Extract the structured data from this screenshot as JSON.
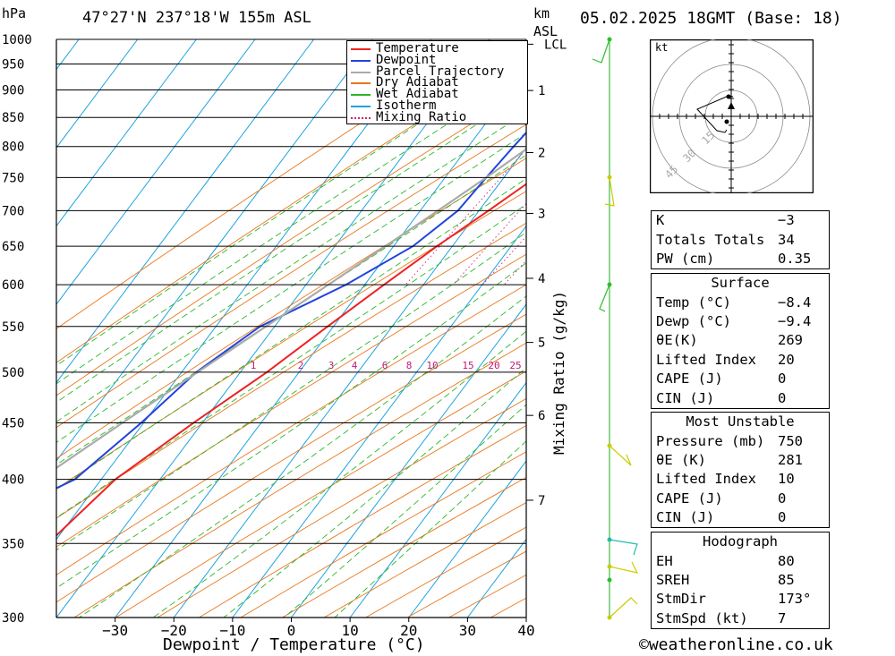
{
  "header": {
    "unit": "hPa",
    "location": "47°27'N 237°18'W 155m ASL",
    "km_label": "km",
    "asl_label": "ASL",
    "datetime": "05.02.2025 18GMT (Base: 18)"
  },
  "chart_data": {
    "type": "skew-t",
    "xlabel": "Dewpoint / Temperature (°C)",
    "ylabel": "hPa",
    "right_axis_label": "Mixing Ratio (g/kg)",
    "xlim": [
      -40,
      40
    ],
    "ylim": [
      1000,
      300
    ],
    "x_ticks": [
      -30,
      -20,
      -10,
      0,
      10,
      20,
      30,
      40
    ],
    "x_tick_labels": [
      "−30",
      "−20",
      "−10",
      "0",
      "10",
      "20",
      "30",
      "40"
    ],
    "pressure_levels": [
      300,
      350,
      400,
      450,
      500,
      550,
      600,
      650,
      700,
      750,
      800,
      850,
      900,
      950,
      1000
    ],
    "km_ticks": [
      {
        "label": "7",
        "p": 383
      },
      {
        "label": "6",
        "p": 457
      },
      {
        "label": "5",
        "p": 532
      },
      {
        "label": "4",
        "p": 608
      },
      {
        "label": "3",
        "p": 696
      },
      {
        "label": "2",
        "p": 790
      },
      {
        "label": "1",
        "p": 899
      },
      {
        "label": "LCL",
        "p": 990
      }
    ],
    "mixing_ratio_labels": [
      "1",
      "2",
      "3",
      "4",
      "6",
      "8",
      "10",
      "15",
      "20",
      "25"
    ],
    "legend": [
      "Temperature",
      "Dewpoint",
      "Parcel Trajectory",
      "Dry Adiabat",
      "Wet Adiabat",
      "Isotherm",
      "Mixing Ratio"
    ],
    "legend_position": "top-right",
    "series": [
      {
        "name": "Temperature",
        "color": "#ee2222",
        "points": [
          [
            1000,
            -8.4
          ],
          [
            975,
            -7.0
          ],
          [
            950,
            -6.5
          ],
          [
            925,
            -6.6
          ],
          [
            900,
            -7.0
          ],
          [
            875,
            -7.8
          ],
          [
            850,
            -8.6
          ],
          [
            800,
            -11.4
          ],
          [
            750,
            -14.6
          ],
          [
            700,
            -18.4
          ],
          [
            650,
            -22.6
          ],
          [
            600,
            -26.7
          ],
          [
            550,
            -31.0
          ],
          [
            500,
            -35.5
          ],
          [
            450,
            -41.5
          ],
          [
            400,
            -47.6
          ],
          [
            350,
            -50.9
          ],
          [
            300,
            -54.0
          ]
        ]
      },
      {
        "name": "Dewpoint",
        "color": "#2244dd",
        "points": [
          [
            1000,
            -9.4
          ],
          [
            975,
            -10.0
          ],
          [
            950,
            -11.0
          ],
          [
            925,
            -15.0
          ],
          [
            900,
            -19.5
          ],
          [
            850,
            -21.5
          ],
          [
            800,
            -22.3
          ],
          [
            750,
            -23.0
          ],
          [
            700,
            -23.6
          ],
          [
            650,
            -26.7
          ],
          [
            600,
            -33.2
          ],
          [
            550,
            -42.5
          ],
          [
            500,
            -47.5
          ],
          [
            450,
            -50.4
          ],
          [
            400,
            -54.5
          ],
          [
            350,
            -69.0
          ],
          [
            300,
            -73.0
          ]
        ]
      },
      {
        "name": "Parcel Trajectory",
        "color": "#aaaaaa",
        "points": [
          [
            1000,
            -9.4
          ],
          [
            950,
            -11.2
          ],
          [
            900,
            -13.6
          ],
          [
            850,
            -16.4
          ],
          [
            800,
            -19.5
          ],
          [
            750,
            -23.0
          ],
          [
            700,
            -27.0
          ],
          [
            650,
            -31.4
          ],
          [
            600,
            -36.2
          ],
          [
            550,
            -41.5
          ],
          [
            500,
            -47.3
          ],
          [
            450,
            -53.6
          ],
          [
            400,
            -60.5
          ],
          [
            350,
            -68.0
          ],
          [
            300,
            -76.0
          ]
        ]
      }
    ]
  },
  "hodograph": {
    "unit_label": "kt",
    "ring_labels": [
      "15",
      "30",
      "45"
    ]
  },
  "indices": {
    "general": [
      {
        "label": "K",
        "value": "−3"
      },
      {
        "label": "Totals Totals",
        "value": "34"
      },
      {
        "label": "PW (cm)",
        "value": "0.35"
      }
    ],
    "surface": {
      "title": "Surface",
      "rows": [
        {
          "label": "Temp (°C)",
          "value": "−8.4"
        },
        {
          "label": "Dewp (°C)",
          "value": "−9.4"
        },
        {
          "label": "θE(K)",
          "value": "269"
        },
        {
          "label": "Lifted Index",
          "value": "20"
        },
        {
          "label": "CAPE (J)",
          "value": "0"
        },
        {
          "label": "CIN (J)",
          "value": "0"
        }
      ]
    },
    "most_unstable": {
      "title": "Most Unstable",
      "rows": [
        {
          "label": "Pressure (mb)",
          "value": "750"
        },
        {
          "label": "θE (K)",
          "value": "281"
        },
        {
          "label": "Lifted Index",
          "value": "10"
        },
        {
          "label": "CAPE (J)",
          "value": "0"
        },
        {
          "label": "CIN (J)",
          "value": "0"
        }
      ]
    },
    "hodograph_table": {
      "title": "Hodograph",
      "rows": [
        {
          "label": "EH",
          "value": "80"
        },
        {
          "label": "SREH",
          "value": "85"
        },
        {
          "label": "StmDir",
          "value": "173°"
        },
        {
          "label": "StmSpd (kt)",
          "value": "7"
        }
      ]
    }
  },
  "footer": {
    "copyright": "©weatheronline.co.uk"
  }
}
